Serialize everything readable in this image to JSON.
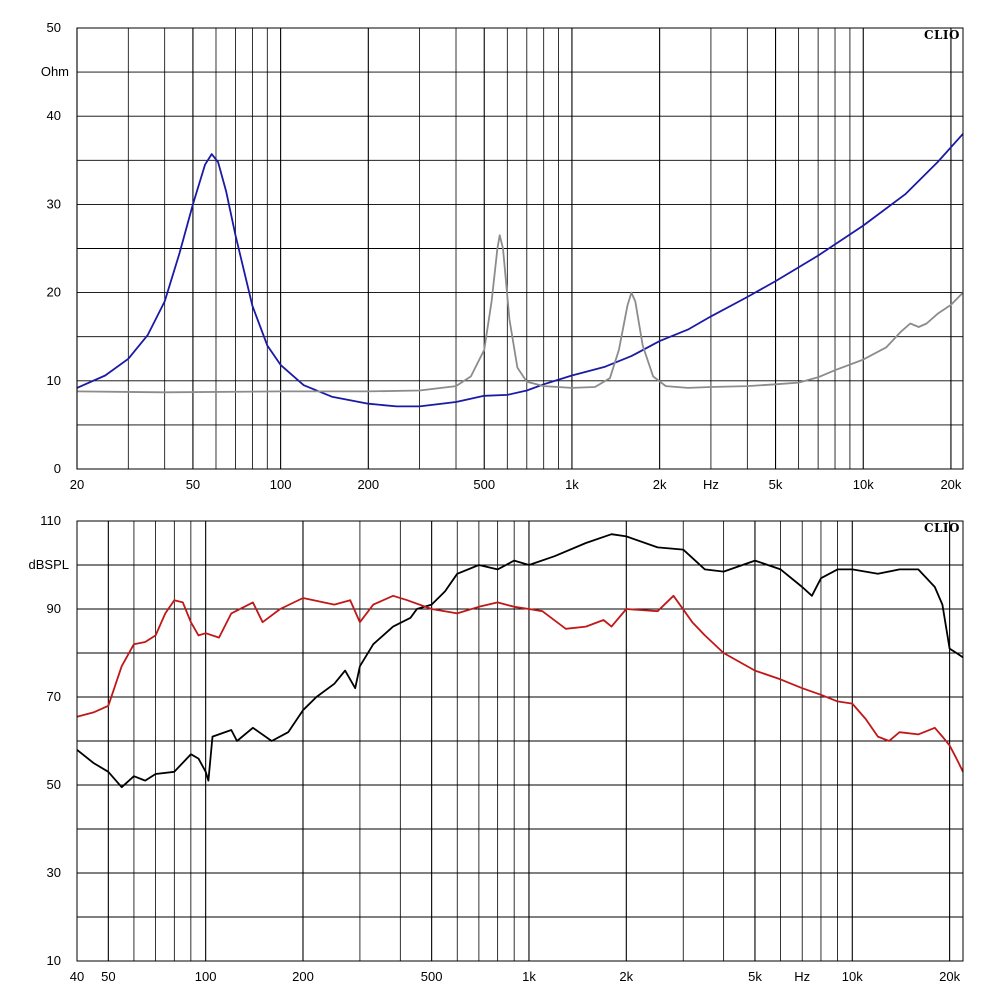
{
  "chart_data": [
    {
      "type": "line",
      "brand": "CLIO",
      "ylabel": "Ohm",
      "xlabel": "Hz",
      "xscale": "log",
      "xlim": [
        20,
        22000
      ],
      "ylim": [
        0,
        50
      ],
      "grid": true,
      "y_ticks": [
        {
          "v": 0,
          "label": "0"
        },
        {
          "v": 10,
          "label": "10"
        },
        {
          "v": 20,
          "label": "20"
        },
        {
          "v": 30,
          "label": "30"
        },
        {
          "v": 40,
          "label": "40"
        },
        {
          "v": 50,
          "label": "50"
        }
      ],
      "x_ticks": [
        {
          "v": 20,
          "label": "20"
        },
        {
          "v": 50,
          "label": "50"
        },
        {
          "v": 100,
          "label": "100"
        },
        {
          "v": 200,
          "label": "200"
        },
        {
          "v": 500,
          "label": "500"
        },
        {
          "v": 1000,
          "label": "1k"
        },
        {
          "v": 2000,
          "label": "2k"
        },
        {
          "v": 3000,
          "label": "Hz"
        },
        {
          "v": 5000,
          "label": "5k"
        },
        {
          "v": 10000,
          "label": "10k"
        },
        {
          "v": 20000,
          "label": "20k"
        }
      ],
      "series": [
        {
          "color": "#1a1aa6",
          "points": [
            [
              20,
              9.2
            ],
            [
              25,
              10.6
            ],
            [
              30,
              12.5
            ],
            [
              35,
              15.2
            ],
            [
              40,
              19
            ],
            [
              45,
              24.5
            ],
            [
              50,
              30
            ],
            [
              55,
              34.5
            ],
            [
              58,
              35.7
            ],
            [
              61,
              34.8
            ],
            [
              65,
              31.5
            ],
            [
              70,
              26.5
            ],
            [
              80,
              18.5
            ],
            [
              90,
              14
            ],
            [
              100,
              11.8
            ],
            [
              120,
              9.5
            ],
            [
              150,
              8.2
            ],
            [
              200,
              7.4
            ],
            [
              250,
              7.1
            ],
            [
              300,
              7.1
            ],
            [
              400,
              7.6
            ],
            [
              500,
              8.3
            ],
            [
              600,
              8.4
            ],
            [
              700,
              8.9
            ],
            [
              800,
              9.6
            ],
            [
              1000,
              10.6
            ],
            [
              1300,
              11.6
            ],
            [
              1600,
              12.8
            ],
            [
              2000,
              14.5
            ],
            [
              2500,
              15.8
            ],
            [
              3000,
              17.3
            ],
            [
              4000,
              19.5
            ],
            [
              5000,
              21.3
            ],
            [
              7000,
              24.2
            ],
            [
              10000,
              27.6
            ],
            [
              14000,
              31.2
            ],
            [
              18000,
              34.8
            ],
            [
              22000,
              38
            ]
          ]
        },
        {
          "color": "#8c8c8c",
          "points": [
            [
              20,
              8.8
            ],
            [
              40,
              8.7
            ],
            [
              100,
              8.8
            ],
            [
              200,
              8.8
            ],
            [
              300,
              8.9
            ],
            [
              400,
              9.4
            ],
            [
              450,
              10.5
            ],
            [
              500,
              13.5
            ],
            [
              530,
              19
            ],
            [
              555,
              25
            ],
            [
              565,
              26.5
            ],
            [
              580,
              25
            ],
            [
              610,
              17
            ],
            [
              650,
              11.5
            ],
            [
              700,
              9.9
            ],
            [
              800,
              9.4
            ],
            [
              1000,
              9.2
            ],
            [
              1200,
              9.3
            ],
            [
              1350,
              10.3
            ],
            [
              1450,
              13.5
            ],
            [
              1550,
              18.5
            ],
            [
              1600,
              20
            ],
            [
              1650,
              19
            ],
            [
              1750,
              14
            ],
            [
              1900,
              10.5
            ],
            [
              2100,
              9.4
            ],
            [
              2500,
              9.2
            ],
            [
              3000,
              9.3
            ],
            [
              4000,
              9.4
            ],
            [
              5000,
              9.6
            ],
            [
              6000,
              9.8
            ],
            [
              7000,
              10.4
            ],
            [
              8000,
              11.2
            ],
            [
              10000,
              12.4
            ],
            [
              12000,
              13.8
            ],
            [
              13500,
              15.6
            ],
            [
              14500,
              16.5
            ],
            [
              15500,
              16.1
            ],
            [
              16500,
              16.5
            ],
            [
              18000,
              17.6
            ],
            [
              20000,
              18.6
            ],
            [
              22000,
              20
            ]
          ]
        }
      ]
    },
    {
      "type": "line",
      "brand": "CLIO",
      "ylabel": "dBSPL",
      "xlabel": "Hz",
      "xscale": "log",
      "xlim": [
        40,
        22000
      ],
      "ylim": [
        10,
        110
      ],
      "grid": true,
      "y_ticks": [
        {
          "v": 10,
          "label": "10"
        },
        {
          "v": 30,
          "label": "30"
        },
        {
          "v": 50,
          "label": "50"
        },
        {
          "v": 70,
          "label": "70"
        },
        {
          "v": 90,
          "label": "90"
        },
        {
          "v": 110,
          "label": "110"
        }
      ],
      "x_ticks": [
        {
          "v": 40,
          "label": "40"
        },
        {
          "v": 50,
          "label": "50"
        },
        {
          "v": 100,
          "label": "100"
        },
        {
          "v": 200,
          "label": "200"
        },
        {
          "v": 500,
          "label": "500"
        },
        {
          "v": 1000,
          "label": "1k"
        },
        {
          "v": 2000,
          "label": "2k"
        },
        {
          "v": 5000,
          "label": "5k"
        },
        {
          "v": 7000,
          "label": "Hz"
        },
        {
          "v": 10000,
          "label": "10k"
        },
        {
          "v": 20000,
          "label": "20k"
        }
      ],
      "series": [
        {
          "color": "#000000",
          "points": [
            [
              40,
              58
            ],
            [
              45,
              55
            ],
            [
              50,
              53
            ],
            [
              55,
              49.5
            ],
            [
              60,
              52
            ],
            [
              65,
              51
            ],
            [
              70,
              52.5
            ],
            [
              80,
              53
            ],
            [
              90,
              57
            ],
            [
              95,
              56
            ],
            [
              100,
              53
            ],
            [
              102,
              51
            ],
            [
              105,
              61
            ],
            [
              120,
              62.5
            ],
            [
              125,
              60
            ],
            [
              140,
              63
            ],
            [
              160,
              60
            ],
            [
              180,
              62
            ],
            [
              200,
              67
            ],
            [
              220,
              70
            ],
            [
              250,
              73
            ],
            [
              270,
              76
            ],
            [
              290,
              72
            ],
            [
              300,
              77
            ],
            [
              330,
              82
            ],
            [
              380,
              86
            ],
            [
              430,
              88
            ],
            [
              450,
              90
            ],
            [
              500,
              91
            ],
            [
              550,
              94
            ],
            [
              600,
              98
            ],
            [
              700,
              100
            ],
            [
              800,
              99
            ],
            [
              900,
              101
            ],
            [
              1000,
              100
            ],
            [
              1200,
              102
            ],
            [
              1500,
              105
            ],
            [
              1800,
              107
            ],
            [
              2000,
              106.5
            ],
            [
              2500,
              104
            ],
            [
              3000,
              103.5
            ],
            [
              3500,
              99
            ],
            [
              4000,
              98.5
            ],
            [
              5000,
              101
            ],
            [
              6000,
              99
            ],
            [
              7000,
              95
            ],
            [
              7500,
              93
            ],
            [
              8000,
              97
            ],
            [
              9000,
              99
            ],
            [
              10000,
              99
            ],
            [
              12000,
              98
            ],
            [
              14000,
              99
            ],
            [
              16000,
              99
            ],
            [
              18000,
              95
            ],
            [
              19000,
              91
            ],
            [
              20000,
              81
            ],
            [
              21000,
              80
            ],
            [
              22000,
              79
            ]
          ]
        },
        {
          "color": "#c01818",
          "points": [
            [
              40,
              65.5
            ],
            [
              45,
              66.5
            ],
            [
              50,
              68
            ],
            [
              55,
              77
            ],
            [
              60,
              82
            ],
            [
              65,
              82.5
            ],
            [
              70,
              84
            ],
            [
              75,
              89
            ],
            [
              80,
              92
            ],
            [
              85,
              91.5
            ],
            [
              90,
              87
            ],
            [
              95,
              84
            ],
            [
              100,
              84.5
            ],
            [
              110,
              83.5
            ],
            [
              120,
              89
            ],
            [
              140,
              91.5
            ],
            [
              150,
              87
            ],
            [
              170,
              90
            ],
            [
              200,
              92.5
            ],
            [
              250,
              91
            ],
            [
              280,
              92
            ],
            [
              300,
              87
            ],
            [
              330,
              91
            ],
            [
              380,
              93
            ],
            [
              420,
              92
            ],
            [
              500,
              90
            ],
            [
              600,
              89
            ],
            [
              700,
              90.5
            ],
            [
              800,
              91.5
            ],
            [
              900,
              90.5
            ],
            [
              1000,
              90
            ],
            [
              1100,
              89.5
            ],
            [
              1300,
              85.5
            ],
            [
              1500,
              86
            ],
            [
              1700,
              87.5
            ],
            [
              1800,
              86
            ],
            [
              2000,
              90
            ],
            [
              2500,
              89.5
            ],
            [
              2800,
              93
            ],
            [
              3200,
              87
            ],
            [
              3500,
              84
            ],
            [
              4000,
              80
            ],
            [
              5000,
              76
            ],
            [
              6000,
              74
            ],
            [
              7000,
              72
            ],
            [
              8000,
              70.5
            ],
            [
              9000,
              69
            ],
            [
              10000,
              68.5
            ],
            [
              11000,
              65
            ],
            [
              12000,
              61
            ],
            [
              13000,
              60
            ],
            [
              14000,
              62
            ],
            [
              16000,
              61.5
            ],
            [
              18000,
              63
            ],
            [
              19000,
              61
            ],
            [
              20000,
              59
            ],
            [
              21000,
              56
            ],
            [
              22000,
              53
            ]
          ]
        }
      ]
    }
  ]
}
